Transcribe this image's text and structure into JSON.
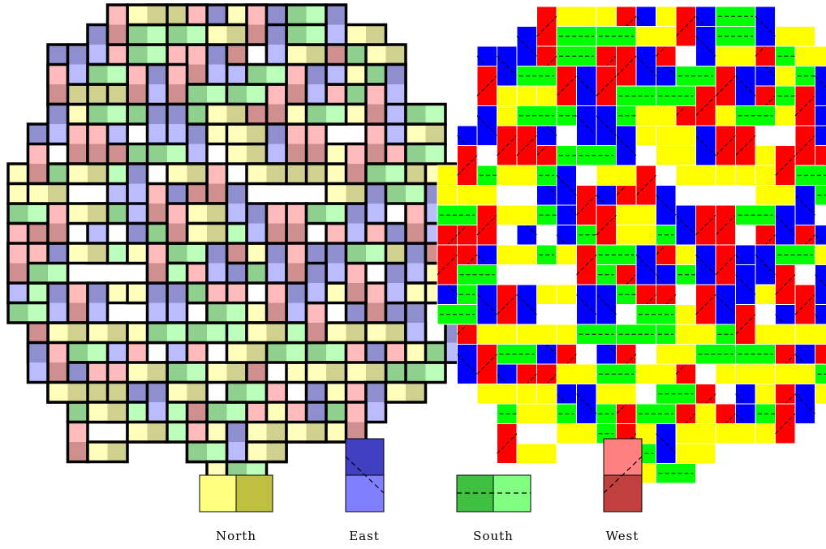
{
  "legend": {
    "north": {
      "label": "North",
      "colors": [
        "#ffff80",
        "#c0c040"
      ]
    },
    "east": {
      "label": "East",
      "colors": [
        "#4040c0",
        "#8080ff"
      ]
    },
    "south": {
      "label": "South",
      "colors": [
        "#40c040",
        "#80ff80"
      ]
    },
    "west": {
      "label": "West",
      "colors": [
        "#ff8080",
        "#c04040"
      ]
    }
  },
  "diagram_colors": {
    "north": "#ffff00",
    "east": "#0000ff",
    "south": "#00ff00",
    "west": "#ff0000"
  },
  "pastel_colors": {
    "north": [
      "#ffffbb",
      "#d0d08f"
    ],
    "east": [
      "#8f8fd0",
      "#bbbbff"
    ],
    "south": [
      "#8fd08f",
      "#bbffbb"
    ],
    "west": [
      "#ffbbbb",
      "#d08f8f"
    ]
  },
  "tiling": {
    "order": 11,
    "dominoes": [
      [
        5,
        10,
        "S"
      ],
      [
        2,
        2,
        "E"
      ],
      [
        5,
        4,
        "N"
      ],
      [
        14,
        16,
        "E"
      ],
      [
        15,
        6,
        "W"
      ],
      [
        14,
        10,
        "W"
      ],
      [
        8,
        6,
        "N"
      ],
      [
        17,
        9,
        "E"
      ],
      [
        8,
        16,
        "E"
      ],
      [
        17,
        15,
        "E"
      ],
      [
        12,
        12,
        "N"
      ],
      [
        13,
        4,
        "W"
      ],
      [
        18,
        14,
        "W"
      ],
      [
        0,
        12,
        "E"
      ],
      [
        10,
        4,
        "N"
      ],
      [
        20,
        8,
        "E"
      ],
      [
        15,
        8,
        "N"
      ],
      [
        14,
        0,
        "S"
      ],
      [
        12,
        20,
        "W"
      ],
      [
        5,
        14,
        "N"
      ],
      [
        15,
        12,
        "E"
      ],
      [
        6,
        5,
        "S"
      ],
      [
        3,
        3,
        "S"
      ],
      [
        1,
        11,
        "S"
      ],
      [
        16,
        16,
        "N"
      ],
      [
        20,
        12,
        "E"
      ],
      [
        11,
        11,
        "W"
      ],
      [
        7,
        9,
        "W"
      ],
      [
        2,
        12,
        "E"
      ],
      [
        16,
        4,
        "W"
      ],
      [
        11,
        2,
        "E"
      ],
      [
        14,
        18,
        "N"
      ],
      [
        5,
        16,
        "E"
      ],
      [
        10,
        20,
        "S"
      ],
      [
        6,
        9,
        "E"
      ],
      [
        9,
        19,
        "W"
      ],
      [
        18,
        6,
        "W"
      ],
      [
        19,
        8,
        "N"
      ],
      [
        12,
        10,
        "E"
      ],
      [
        10,
        8,
        "W"
      ],
      [
        2,
        8,
        "S"
      ],
      [
        7,
        5,
        "E"
      ],
      [
        9,
        17,
        "W"
      ],
      [
        8,
        18,
        "S"
      ],
      [
        11,
        13,
        "E"
      ],
      [
        6,
        7,
        "S"
      ],
      [
        9,
        13,
        "W"
      ],
      [
        18,
        9,
        "E"
      ],
      [
        16,
        14,
        "N"
      ],
      [
        10,
        18,
        "N"
      ],
      [
        15,
        17,
        "S"
      ],
      [
        8,
        12,
        "S"
      ],
      [
        10,
        2,
        "E"
      ],
      [
        3,
        14,
        "W"
      ],
      [
        5,
        12,
        "N"
      ],
      [
        19,
        7,
        "W"
      ],
      [
        6,
        3,
        "W"
      ],
      [
        11,
        5,
        "N"
      ],
      [
        10,
        10,
        "N"
      ],
      [
        13,
        2,
        "N"
      ],
      [
        17,
        10,
        "E"
      ],
      [
        12,
        17,
        "W"
      ],
      [
        20,
        10,
        "W"
      ],
      [
        7,
        13,
        "S"
      ],
      [
        12,
        6,
        "W"
      ],
      [
        14,
        14,
        "E"
      ],
      [
        16,
        11,
        "W"
      ],
      [
        2,
        6,
        "S"
      ],
      [
        9,
        6,
        "E"
      ],
      [
        12,
        4,
        "W"
      ],
      [
        14,
        8,
        "N"
      ],
      [
        11,
        14,
        "W"
      ],
      [
        16,
        8,
        "N"
      ],
      [
        1,
        14,
        "W"
      ],
      [
        18,
        5,
        "S"
      ],
      [
        4,
        12,
        "S"
      ],
      [
        1,
        10,
        "W"
      ],
      [
        3,
        16,
        "N"
      ],
      [
        7,
        3,
        "E"
      ],
      [
        12,
        19,
        "N"
      ],
      [
        11,
        19,
        "S"
      ],
      [
        4,
        16,
        "N"
      ],
      [
        6,
        17,
        "W"
      ],
      [
        2,
        16,
        "N"
      ],
      [
        17,
        4,
        "S"
      ],
      [
        14,
        3,
        "W"
      ],
      [
        10,
        11,
        "S"
      ],
      [
        10,
        12,
        "E"
      ],
      [
        7,
        1,
        "S"
      ],
      [
        8,
        2,
        "W"
      ],
      [
        6,
        16,
        "N"
      ],
      [
        19,
        15,
        "E"
      ],
      [
        5,
        8,
        "E"
      ],
      [
        1,
        8,
        "E"
      ],
      [
        9,
        2,
        "W"
      ],
      [
        12,
        13,
        "S"
      ],
      [
        13,
        17,
        "S"
      ],
      [
        12,
        15,
        "N"
      ],
      [
        4,
        7,
        "S"
      ],
      [
        3,
        5,
        "N"
      ],
      [
        13,
        12,
        "E"
      ],
      [
        15,
        3,
        "E"
      ],
      [
        8,
        3,
        "W"
      ],
      [
        10,
        0,
        "E"
      ],
      [
        15,
        15,
        "W"
      ],
      [
        8,
        5,
        "E"
      ],
      [
        9,
        8,
        "W"
      ],
      [
        9,
        10,
        "N"
      ],
      [
        2,
        10,
        "W"
      ],
      [
        8,
        9,
        "E"
      ],
      [
        9,
        14,
        "S"
      ],
      [
        4,
        2,
        "W"
      ],
      [
        4,
        4,
        "N"
      ],
      [
        8,
        19,
        "N"
      ],
      [
        11,
        17,
        "N"
      ],
      [
        19,
        11,
        "E"
      ],
      [
        6,
        11,
        "E"
      ],
      [
        6,
        14,
        "N"
      ],
      [
        11,
        7,
        "N"
      ],
      [
        4,
        8,
        "S"
      ],
      [
        15,
        19,
        "E"
      ],
      [
        8,
        14,
        "E"
      ],
      [
        14,
        6,
        "W"
      ],
      [
        17,
        13,
        "W"
      ],
      [
        9,
        11,
        "N"
      ],
      [
        13,
        10,
        "W"
      ],
      [
        18,
        16,
        "N"
      ],
      [
        7,
        7,
        "S"
      ],
      [
        13,
        6,
        "E"
      ],
      [
        3,
        6,
        "W"
      ],
      [
        9,
        4,
        "S"
      ],
      [
        19,
        13,
        "E"
      ],
      [
        10,
        14,
        "W"
      ],
      [
        4,
        10,
        "E"
      ],
      [
        15,
        10,
        "S"
      ],
      [
        16,
        7,
        "N"
      ],
      [
        12,
        1,
        "N"
      ],
      [
        7,
        16,
        "S"
      ],
      [
        13,
        14,
        "W"
      ],
      [
        17,
        5,
        "N"
      ],
      [
        0,
        10,
        "S"
      ],
      [
        11,
        16,
        "N"
      ],
      [
        17,
        7,
        "W"
      ],
      [
        2,
        14,
        "E"
      ],
      [
        16,
        2,
        "E"
      ],
      [
        18,
        11,
        "W"
      ],
      [
        13,
        8,
        "N"
      ],
      [
        18,
        12,
        "N"
      ],
      [
        14,
        12,
        "W"
      ],
      [
        4,
        14,
        "E"
      ],
      [
        3,
        8,
        "N"
      ],
      [
        16,
        12,
        "E"
      ],
      [
        10,
        16,
        "S"
      ],
      [
        11,
        9,
        "E"
      ],
      [
        12,
        8,
        "N"
      ],
      [
        10,
        6,
        "N"
      ],
      [
        11,
        1,
        "W"
      ],
      [
        6,
        12,
        "N"
      ],
      [
        14,
        2,
        "N"
      ],
      [
        9,
        1,
        "S"
      ],
      [
        11,
        4,
        "S"
      ],
      [
        13,
        16,
        "S"
      ],
      [
        5,
        6,
        "W"
      ],
      [
        3,
        10,
        "N"
      ],
      [
        7,
        14,
        "E"
      ],
      [
        16,
        18,
        "S"
      ],
      [
        13,
        19,
        "W"
      ],
      [
        20,
        14,
        "N"
      ],
      [
        7,
        11,
        "S"
      ],
      [
        15,
        1,
        "S"
      ],
      [
        7,
        18,
        "W"
      ],
      [
        6,
        2,
        "S"
      ],
      [
        8,
        8,
        "N"
      ],
      [
        3,
        12,
        "N"
      ],
      [
        8,
        10,
        "W"
      ],
      [
        5,
        2,
        "W"
      ],
      [
        12,
        3,
        "S"
      ],
      [
        5,
        18,
        "W"
      ],
      [
        7,
        12,
        "W"
      ],
      [
        3,
        4,
        "N"
      ],
      [
        14,
        5,
        "N"
      ],
      [
        6,
        8,
        "E"
      ],
      [
        9,
        16,
        "S"
      ],
      [
        15,
        5,
        "S"
      ],
      [
        1,
        12,
        "W"
      ],
      [
        10,
        15,
        "S"
      ],
      [
        18,
        8,
        "S"
      ],
      [
        5,
        5,
        "E"
      ],
      [
        9,
        5,
        "S"
      ],
      [
        4,
        6,
        "W"
      ],
      [
        13,
        20,
        "N"
      ],
      [
        17,
        12,
        "S"
      ],
      [
        17,
        17,
        "W"
      ],
      [
        11,
        6,
        "N"
      ],
      [
        3,
        17,
        "S"
      ],
      [
        10,
        5,
        "N"
      ],
      [
        12,
        16,
        "N"
      ],
      [
        16,
        9,
        "N"
      ],
      [
        15,
        13,
        "E"
      ],
      [
        6,
        19,
        "E"
      ],
      [
        2,
        4,
        "N"
      ],
      [
        19,
        9,
        "S"
      ],
      [
        5,
        19,
        "E"
      ],
      [
        8,
        0,
        "S"
      ],
      [
        4,
        18,
        "W"
      ],
      [
        3,
        18,
        "E"
      ],
      [
        17,
        3,
        "N"
      ],
      [
        18,
        3,
        "S"
      ],
      [
        19,
        5,
        "E"
      ],
      [
        7,
        20,
        "S"
      ],
      [
        9,
        0,
        "W"
      ],
      [
        1,
        6,
        "E"
      ],
      [
        16,
        19,
        "N"
      ],
      [
        6,
        20,
        "W"
      ],
      [
        4,
        19,
        "N"
      ],
      [
        5,
        1,
        "N"
      ],
      [
        6,
        1,
        "S"
      ],
      [
        4,
        1,
        "E"
      ],
      [
        2,
        3,
        "W"
      ],
      [
        10,
        21,
        "N"
      ],
      [
        18,
        4,
        "W"
      ],
      [
        20,
        6,
        "N"
      ],
      [
        13,
        21,
        "E"
      ],
      [
        0,
        8,
        "N"
      ],
      [
        15,
        20,
        "E"
      ],
      [
        1,
        7,
        "W"
      ],
      [
        7,
        0,
        "N"
      ],
      [
        14,
        20,
        "W"
      ],
      [
        11,
        0,
        "N"
      ],
      [
        18,
        17,
        "E"
      ],
      [
        12,
        21,
        "N"
      ],
      [
        12,
        0,
        "W"
      ],
      [
        2,
        18,
        "E"
      ],
      [
        8,
        21,
        "N"
      ],
      [
        1,
        16,
        "E"
      ],
      [
        20,
        16,
        "W"
      ],
      [
        19,
        17,
        "W"
      ],
      [
        0,
        14,
        "S"
      ],
      [
        17,
        19,
        "W"
      ],
      [
        0,
        13,
        "E"
      ],
      [
        0,
        9,
        "N"
      ],
      [
        21,
        13,
        "N"
      ],
      [
        21,
        9,
        "S"
      ],
      [
        19,
        4,
        "E"
      ],
      [
        21,
        12,
        "S"
      ],
      [
        3,
        2,
        "E"
      ],
      [
        21,
        11,
        "W"
      ],
      [
        17,
        2,
        "S"
      ],
      [
        19,
        18,
        "S"
      ],
      [
        16,
        1,
        "W"
      ],
      [
        21,
        8,
        "N"
      ],
      [
        9,
        21,
        "W"
      ],
      [
        5,
        20,
        "S"
      ],
      [
        14,
        1,
        "S"
      ],
      [
        20,
        5,
        "S"
      ],
      [
        3,
        19,
        "N"
      ],
      [
        11,
        21,
        "E"
      ],
      [
        16,
        20,
        "S"
      ],
      [
        18,
        18,
        "W"
      ],
      [
        2,
        17,
        "W"
      ],
      [
        20,
        17,
        "N"
      ],
      [
        2,
        5,
        "E"
      ],
      [
        1,
        15,
        "W"
      ],
      [
        0,
        11,
        "W"
      ],
      [
        1,
        9,
        "N"
      ],
      [
        21,
        10,
        "E"
      ],
      [
        13,
        0,
        "E"
      ],
      [
        20,
        7,
        "S"
      ],
      [
        21,
        14,
        "N"
      ],
      [
        4,
        3,
        "S"
      ],
      [
        18,
        2,
        "N"
      ],
      [
        15,
        21,
        "S"
      ],
      [
        14,
        21,
        "N"
      ],
      [
        3,
        20,
        "S"
      ],
      [
        8,
        1,
        "S"
      ],
      [
        6,
        0,
        "N"
      ],
      [
        17,
        1,
        "N"
      ],
      [
        16,
        0,
        "E"
      ],
      [
        10,
        1,
        "N"
      ],
      [
        20,
        15,
        "E"
      ],
      [
        6,
        18,
        "N"
      ],
      [
        7,
        19,
        "E"
      ],
      [
        1,
        13,
        "S"
      ],
      [
        5,
        0,
        "W"
      ],
      [
        13,
        1,
        "E"
      ],
      [
        15,
        18,
        "N"
      ],
      [
        17,
        18,
        "N"
      ],
      [
        4,
        20,
        "N"
      ],
      [
        18,
        19,
        "E"
      ],
      [
        4,
        5,
        "S"
      ],
      [
        19,
        3,
        "E"
      ],
      [
        7,
        21,
        "S"
      ],
      [
        6,
        21,
        "N"
      ],
      [
        0,
        12,
        "W"
      ],
      [
        21,
        9,
        "E"
      ],
      [
        16,
        21,
        "N"
      ],
      [
        17,
        20,
        "W"
      ],
      [
        19,
        19,
        "N"
      ],
      [
        20,
        18,
        "S"
      ],
      [
        21,
        17,
        "S"
      ],
      [
        22,
        15,
        "S"
      ],
      [
        22,
        11,
        "N"
      ],
      [
        22,
        10,
        "S"
      ],
      [
        22,
        16,
        "E"
      ],
      [
        22,
        12,
        "W"
      ],
      [
        0,
        15,
        "S"
      ],
      [
        1,
        17,
        "E"
      ],
      [
        2,
        19,
        "N"
      ],
      [
        3,
        21,
        "W"
      ],
      [
        4,
        22,
        "N"
      ],
      [
        9,
        22,
        "S"
      ],
      [
        10,
        23,
        "N"
      ],
      [
        11,
        23,
        "S"
      ],
      [
        12,
        22,
        "N"
      ]
    ]
  }
}
